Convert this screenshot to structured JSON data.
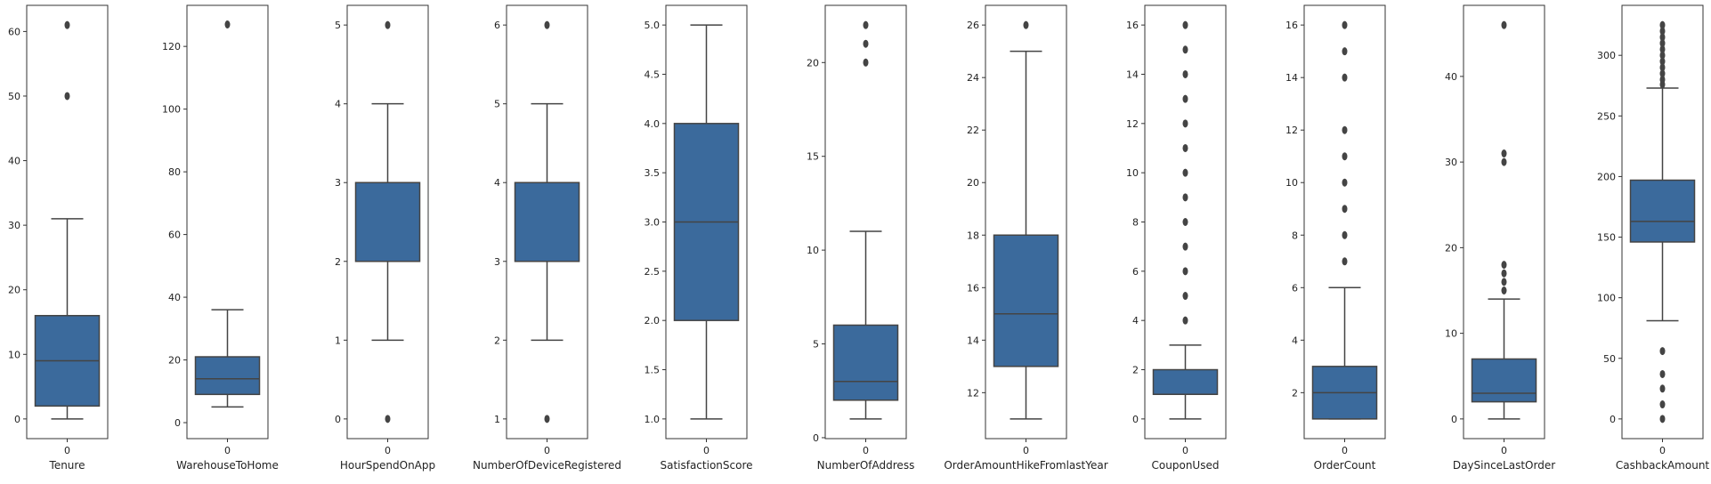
{
  "chart_data": [
    {
      "type": "box",
      "xlabel": "Tenure",
      "categories": [
        "0"
      ],
      "ylim": [
        -3.05,
        64.05
      ],
      "yticks": [
        0,
        10,
        20,
        30,
        40,
        50,
        60
      ],
      "ytick_labels": [
        "0",
        "10",
        "20",
        "30",
        "40",
        "50",
        "60"
      ],
      "box": {
        "q1": 2,
        "median": 9,
        "q3": 16,
        "whisker_low": 0,
        "whisker_high": 31
      },
      "outliers": [
        50,
        61
      ]
    },
    {
      "type": "box",
      "xlabel": "WarehouseToHome",
      "categories": [
        "0"
      ],
      "ylim": [
        -5.1,
        133.1
      ],
      "yticks": [
        0,
        20,
        40,
        60,
        80,
        100,
        120
      ],
      "ytick_labels": [
        "0",
        "20",
        "40",
        "60",
        "80",
        "100",
        "120"
      ],
      "box": {
        "q1": 9,
        "median": 14,
        "q3": 21,
        "whisker_low": 5,
        "whisker_high": 36
      },
      "outliers": [
        127
      ]
    },
    {
      "type": "box",
      "xlabel": "HourSpendOnApp",
      "categories": [
        "0"
      ],
      "ylim": [
        -0.25,
        5.25
      ],
      "yticks": [
        0,
        1,
        2,
        3,
        4,
        5
      ],
      "ytick_labels": [
        "0",
        "1",
        "2",
        "3",
        "4",
        "5"
      ],
      "box": {
        "q1": 2,
        "median": 3,
        "q3": 3,
        "whisker_low": 1,
        "whisker_high": 4
      },
      "outliers": [
        0,
        5
      ]
    },
    {
      "type": "box",
      "xlabel": "NumberOfDeviceRegistered",
      "categories": [
        "0"
      ],
      "ylim": [
        0.75,
        6.25
      ],
      "yticks": [
        1,
        2,
        3,
        4,
        5,
        6
      ],
      "ytick_labels": [
        "1",
        "2",
        "3",
        "4",
        "5",
        "6"
      ],
      "box": {
        "q1": 3,
        "median": 4,
        "q3": 4,
        "whisker_low": 2,
        "whisker_high": 5
      },
      "outliers": [
        1,
        6
      ]
    },
    {
      "type": "box",
      "xlabel": "SatisfactionScore",
      "categories": [
        "0"
      ],
      "ylim": [
        0.8,
        5.2
      ],
      "yticks": [
        1.0,
        1.5,
        2.0,
        2.5,
        3.0,
        3.5,
        4.0,
        4.5,
        5.0
      ],
      "ytick_labels": [
        "1.0",
        "1.5",
        "2.0",
        "2.5",
        "3.0",
        "3.5",
        "4.0",
        "4.5",
        "5.0"
      ],
      "box": {
        "q1": 2,
        "median": 3,
        "q3": 4,
        "whisker_low": 1,
        "whisker_high": 5
      },
      "outliers": []
    },
    {
      "type": "box",
      "xlabel": "NumberOfAddress",
      "categories": [
        "0"
      ],
      "ylim": [
        -0.05,
        23.05
      ],
      "yticks": [
        0,
        5,
        10,
        15,
        20
      ],
      "ytick_labels": [
        "0",
        "5",
        "10",
        "15",
        "20"
      ],
      "box": {
        "q1": 2,
        "median": 3,
        "q3": 6,
        "whisker_low": 1,
        "whisker_high": 11
      },
      "outliers": [
        20,
        21,
        22
      ]
    },
    {
      "type": "box",
      "xlabel": "OrderAmountHikeFromlastYear",
      "categories": [
        "0"
      ],
      "ylim": [
        10.25,
        26.75
      ],
      "yticks": [
        12,
        14,
        16,
        18,
        20,
        22,
        24,
        26
      ],
      "ytick_labels": [
        "12",
        "14",
        "16",
        "18",
        "20",
        "22",
        "24",
        "26"
      ],
      "box": {
        "q1": 13,
        "median": 15,
        "q3": 18,
        "whisker_low": 11,
        "whisker_high": 25
      },
      "outliers": [
        26
      ]
    },
    {
      "type": "box",
      "xlabel": "CouponUsed",
      "categories": [
        "0"
      ],
      "ylim": [
        -0.8,
        16.8
      ],
      "yticks": [
        0,
        2,
        4,
        6,
        8,
        10,
        12,
        14,
        16
      ],
      "ytick_labels": [
        "0",
        "2",
        "4",
        "6",
        "8",
        "10",
        "12",
        "14",
        "16"
      ],
      "box": {
        "q1": 1,
        "median": 1,
        "q3": 2,
        "whisker_low": 0,
        "whisker_high": 3
      },
      "outliers": [
        4,
        5,
        6,
        7,
        8,
        9,
        10,
        11,
        12,
        13,
        14,
        15,
        16
      ]
    },
    {
      "type": "box",
      "xlabel": "OrderCount",
      "categories": [
        "0"
      ],
      "ylim": [
        0.25,
        16.75
      ],
      "yticks": [
        2,
        4,
        6,
        8,
        10,
        12,
        14,
        16
      ],
      "ytick_labels": [
        "2",
        "4",
        "6",
        "8",
        "10",
        "12",
        "14",
        "16"
      ],
      "box": {
        "q1": 1,
        "median": 2,
        "q3": 3,
        "whisker_low": 1,
        "whisker_high": 6
      },
      "outliers": [
        7,
        8,
        9,
        10,
        11,
        12,
        14,
        15,
        16
      ]
    },
    {
      "type": "box",
      "xlabel": "DaySinceLastOrder",
      "categories": [
        "0"
      ],
      "ylim": [
        -2.3,
        48.3
      ],
      "yticks": [
        0,
        10,
        20,
        30,
        40
      ],
      "ytick_labels": [
        "0",
        "10",
        "20",
        "30",
        "40"
      ],
      "box": {
        "q1": 2,
        "median": 3,
        "q3": 7,
        "whisker_low": 0,
        "whisker_high": 14
      },
      "outliers": [
        15,
        16,
        17,
        18,
        30,
        31,
        46
      ]
    },
    {
      "type": "box",
      "xlabel": "CashbackAmount",
      "categories": [
        "0"
      ],
      "ylim": [
        -16.25,
        341.25
      ],
      "yticks": [
        0,
        50,
        100,
        150,
        200,
        250,
        300
      ],
      "ytick_labels": [
        "0",
        "50",
        "100",
        "150",
        "200",
        "250",
        "300"
      ],
      "box": {
        "q1": 146,
        "median": 163,
        "q3": 197,
        "whisker_low": 81,
        "whisker_high": 273
      },
      "outliers": [
        0,
        12,
        25,
        37,
        56,
        276,
        280,
        285,
        290,
        295,
        300,
        305,
        310,
        315,
        320,
        325
      ]
    }
  ],
  "style": {
    "box_fill": "#3b6a9c",
    "line_color": "#444444",
    "axis_color": "#333333"
  }
}
